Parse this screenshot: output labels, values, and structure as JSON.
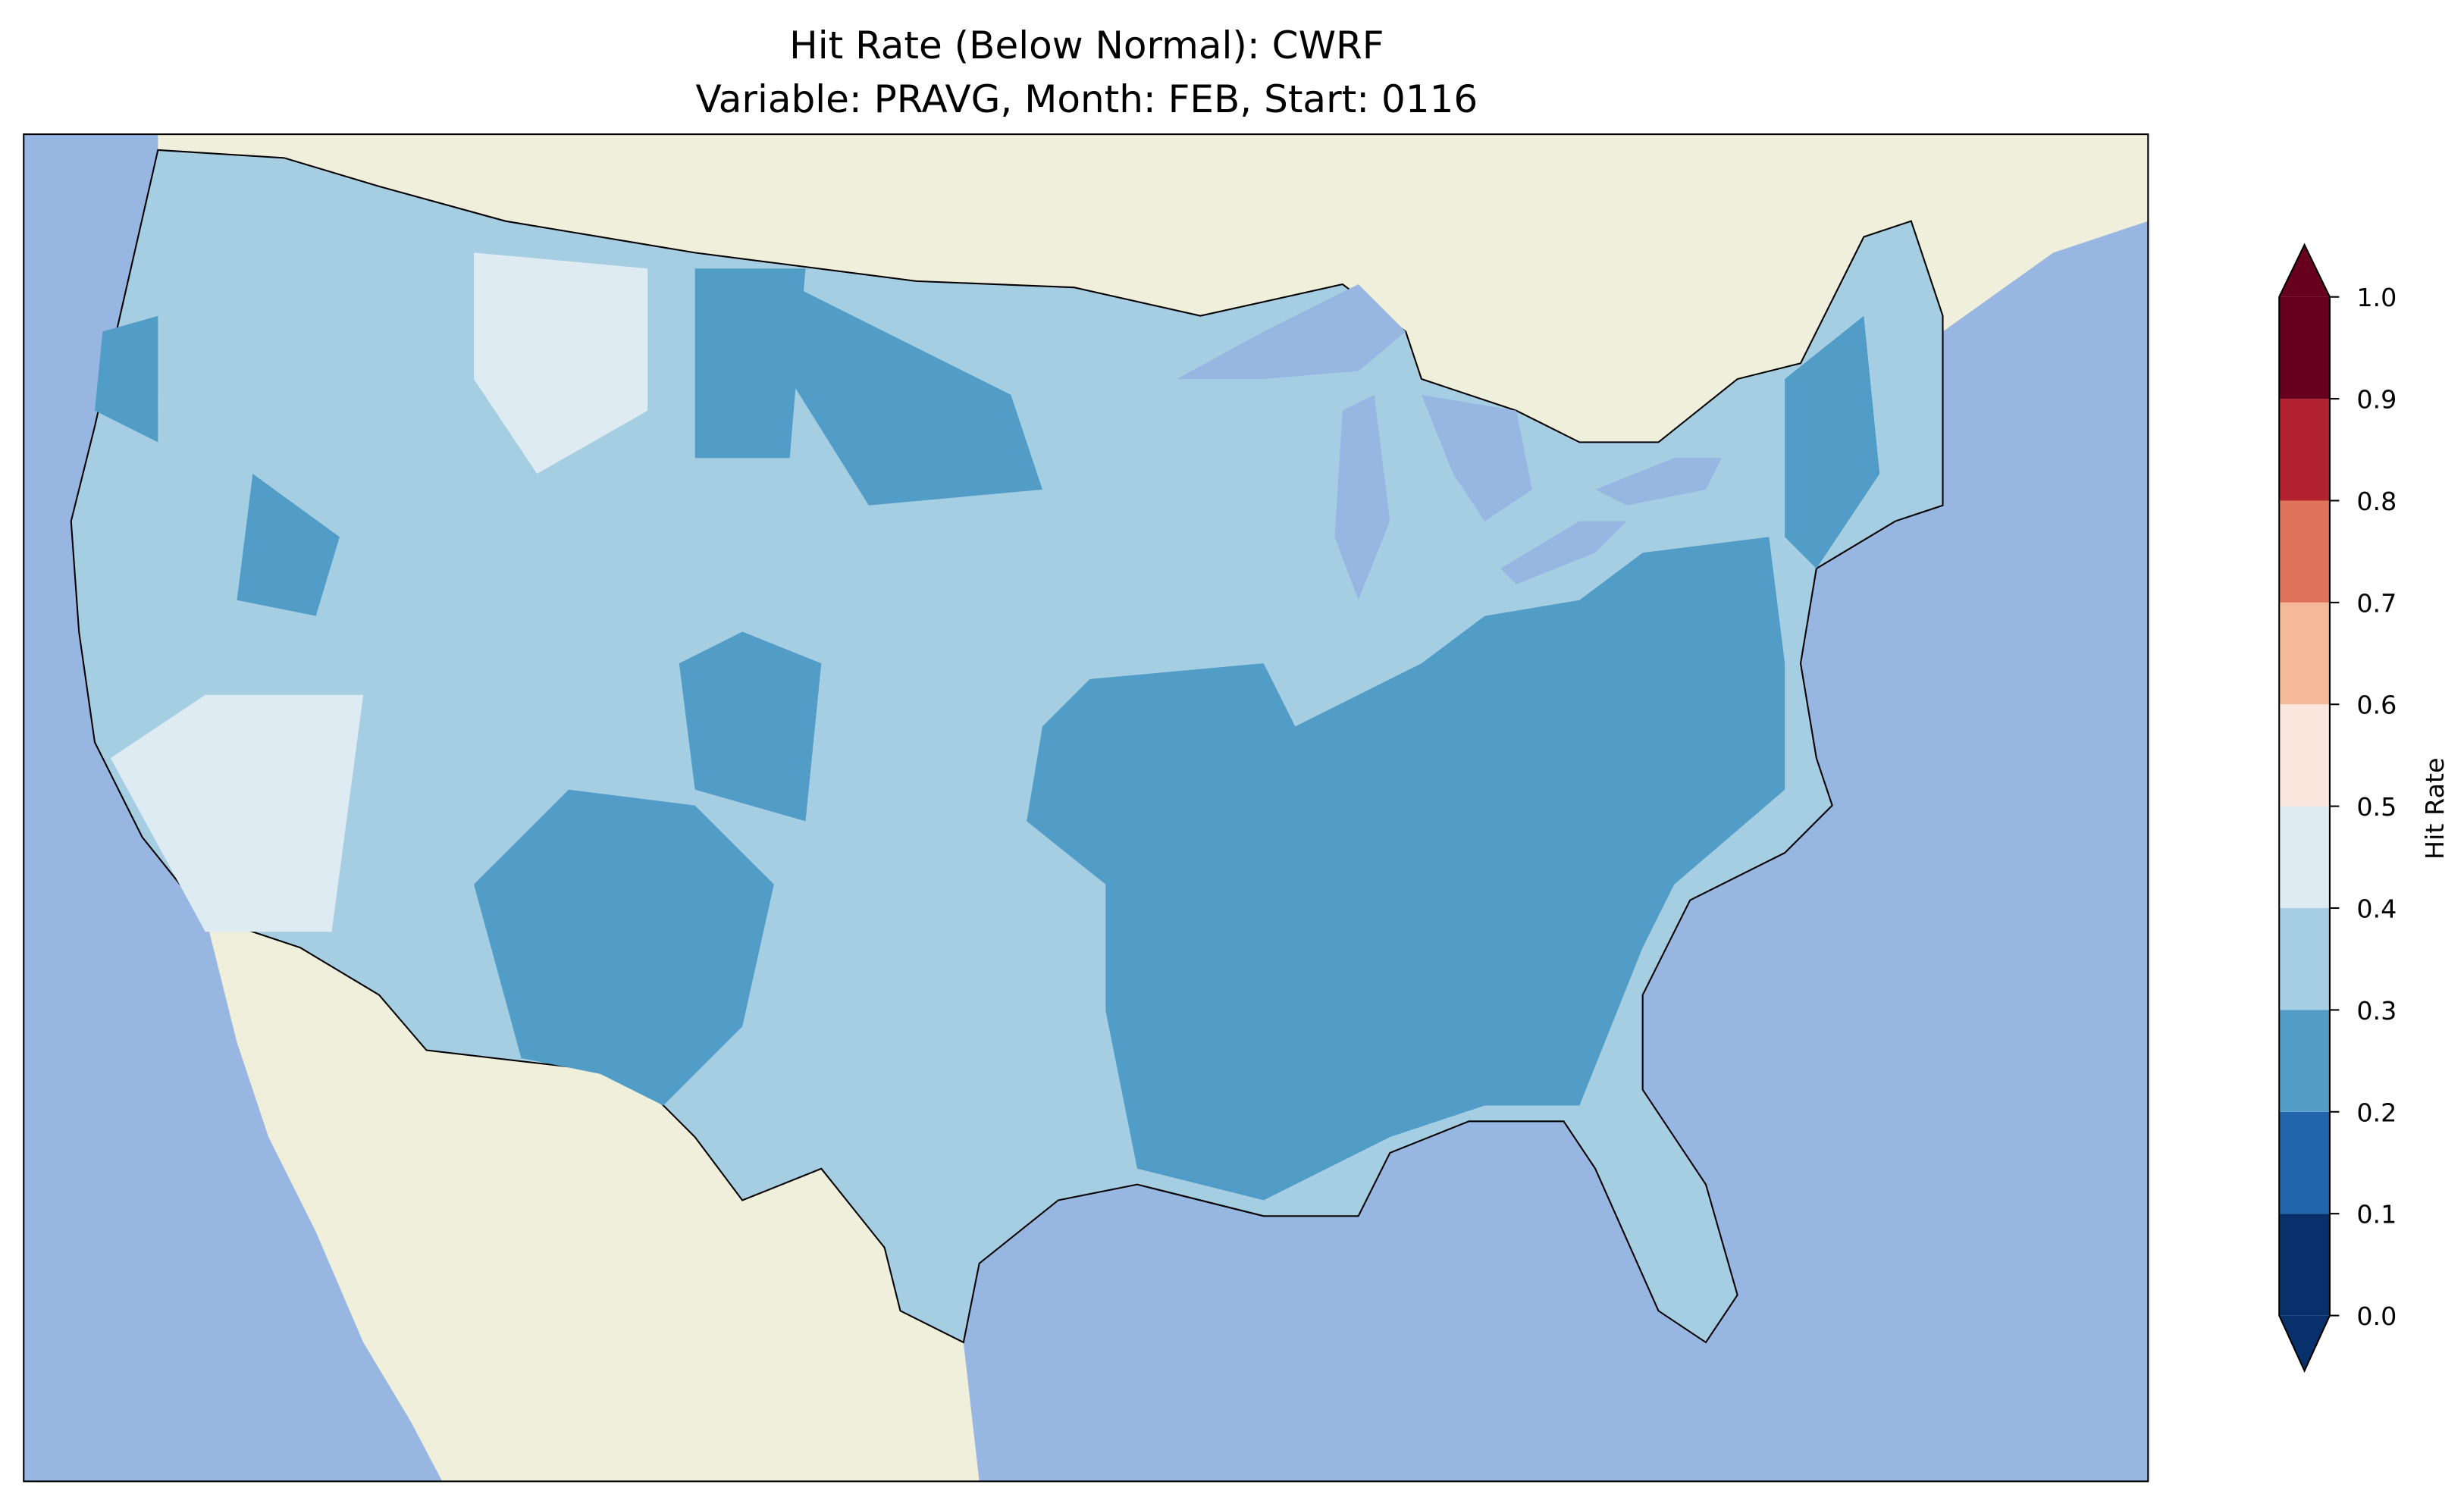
{
  "chart_data": {
    "type": "heatmap",
    "title_line1": "Hit Rate (Below Normal): CWRF",
    "title_line2": "Variable: PRAVG, Month: FEB, Start: 0116",
    "colorbar": {
      "label": "Hit Rate",
      "range": [
        0.0,
        1.0
      ],
      "extend": "both",
      "ticks": [
        "0.0",
        "0.1",
        "0.2",
        "0.3",
        "0.4",
        "0.5",
        "0.6",
        "0.7",
        "0.8",
        "0.9",
        "1.0"
      ],
      "bins": [
        {
          "from": 0.0,
          "to": 0.1,
          "color": "#08306b"
        },
        {
          "from": 0.1,
          "to": 0.2,
          "color": "#2166ac"
        },
        {
          "from": 0.2,
          "to": 0.3,
          "color": "#529dc8"
        },
        {
          "from": 0.3,
          "to": 0.4,
          "color": "#a6cee3"
        },
        {
          "from": 0.4,
          "to": 0.5,
          "color": "#deebf2"
        },
        {
          "from": 0.5,
          "to": 0.6,
          "color": "#f9e6dd"
        },
        {
          "from": 0.6,
          "to": 0.7,
          "color": "#f5b898"
        },
        {
          "from": 0.7,
          "to": 0.8,
          "color": "#df735b"
        },
        {
          "from": 0.8,
          "to": 0.9,
          "color": "#b2212e"
        },
        {
          "from": 0.9,
          "to": 1.0,
          "color": "#67001f"
        }
      ]
    },
    "map": {
      "region": "Contiguous United States",
      "dominant_value_range": [
        0.3,
        0.4
      ],
      "regions": [
        {
          "name": "Southeast & Mid-South",
          "value_range": [
            0.2,
            0.3
          ]
        },
        {
          "name": "Northeast coast",
          "value_range": [
            0.2,
            0.3
          ]
        },
        {
          "name": "New Mexico / West Texas",
          "value_range": [
            0.2,
            0.3
          ]
        },
        {
          "name": "Colorado",
          "value_range": [
            0.2,
            0.3
          ]
        },
        {
          "name": "Montana",
          "value_range": [
            0.2,
            0.3
          ]
        },
        {
          "name": "Dakotas",
          "value_range": [
            0.2,
            0.3
          ]
        },
        {
          "name": "Idaho / W Montana",
          "value_range": [
            0.4,
            0.5
          ]
        },
        {
          "name": "Southern California",
          "value_range": [
            0.4,
            0.5
          ]
        }
      ]
    },
    "colors": {
      "ocean": "#97b6e1",
      "land": "#efefdb"
    }
  }
}
